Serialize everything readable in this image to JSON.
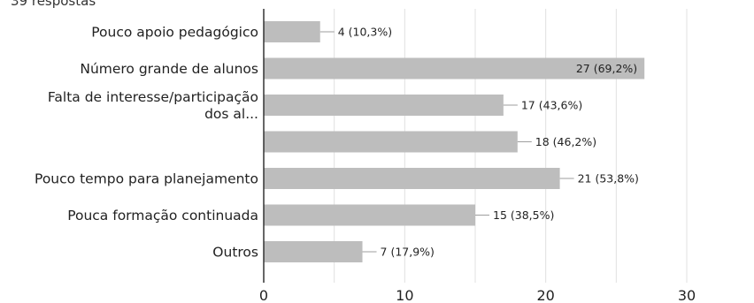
{
  "header": {
    "responses": "39 respostas"
  },
  "chart_data": {
    "type": "bar",
    "orientation": "horizontal",
    "categories": [
      [
        "Pouco apoio pedagógico"
      ],
      [
        "Número grande de alunos"
      ],
      [
        "Falta de interesse/participação",
        "dos al..."
      ],
      [
        ""
      ],
      [
        "Pouco tempo para planejamento"
      ],
      [
        "Pouca formação continuada"
      ],
      [
        "Outros"
      ]
    ],
    "values": [
      4,
      27,
      17,
      18,
      21,
      15,
      7
    ],
    "data_labels": [
      "4 (10,3%)",
      "27 (69,2%)",
      "17 (43,6%)",
      "18 (46,2%)",
      "21 (53,8%)",
      "15 (38,5%)",
      "7 (17,9%)"
    ],
    "xlim": [
      0,
      30
    ],
    "xticks": [
      0,
      10,
      20,
      30
    ],
    "grid": true,
    "colors": {
      "bar": "#bdbdbd",
      "grid": "#e0e0e0",
      "axis": "#333333",
      "leader": "#9e9e9e"
    }
  }
}
